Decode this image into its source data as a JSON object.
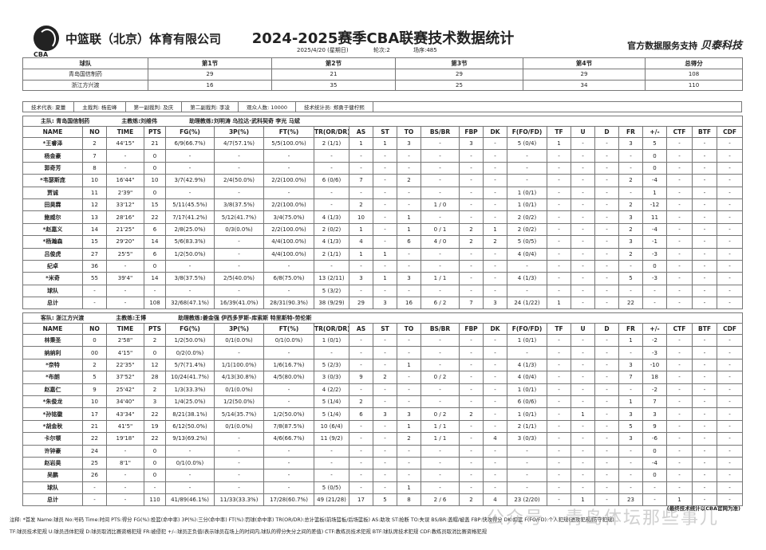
{
  "header": {
    "company": "中篮联（北京）体育有限公司",
    "logo_text": "CBA",
    "title": "2024-2025赛季CBA联赛技术数据统计",
    "date": "2025/4/20 (星期日)",
    "round": "轮次:2",
    "game_no": "场序:485",
    "sponsor_prefix": "官方数据服务支持",
    "sponsor_brand": "贝泰科技"
  },
  "quarters": {
    "headers": [
      "球队",
      "第1节",
      "第2节",
      "第3节",
      "第4节",
      "总得分"
    ],
    "rows": [
      [
        "青岛国信制药",
        "29",
        "21",
        "29",
        "29",
        "108"
      ],
      [
        "浙江方兴渡",
        "16",
        "35",
        "25",
        "34",
        "110"
      ]
    ]
  },
  "officials": [
    "技术代表: 夏蕾",
    "主裁判: 杨宏峰",
    "第一副裁判: 及庆",
    "第二副裁判: 李凌",
    "观众人数: 10000",
    "技术统计员: 郑勇于健柠熙"
  ],
  "columns": [
    "NAME",
    "NO",
    "TIME",
    "PTS",
    "FG(%)",
    "3P(%)",
    "FT(%)",
    "TR(OR/DR)",
    "AS",
    "ST",
    "TO",
    "BS/BR",
    "FBP",
    "DK",
    "F(FO/FD)",
    "TF",
    "U",
    "D",
    "FR",
    "+/-",
    "CTF",
    "BTF",
    "CDF"
  ],
  "home": {
    "team": "主队: 青岛国信制药",
    "coach": "主教练:刘维伟",
    "assistants": "助理教练:刘明涛 乌拉达·武科契奇 李光 马斌",
    "rows": [
      [
        "*王睿泽",
        "2",
        "44'15\"",
        "21",
        "6/9(66.7%)",
        "4/7(57.1%)",
        "5/5(100.0%)",
        "2 (1/1)",
        "1",
        "1",
        "3",
        "-",
        "3",
        "-",
        "5 (0/4)",
        "1",
        "-",
        "-",
        "3",
        "5",
        "-",
        "-",
        "-"
      ],
      [
        "杨金豪",
        "7",
        "-",
        "0",
        "-",
        "-",
        "-",
        "-",
        "-",
        "-",
        "-",
        "-",
        "-",
        "-",
        "-",
        "-",
        "-",
        "-",
        "-",
        "0",
        "-",
        "-",
        "-"
      ],
      [
        "郭奇芳",
        "8",
        "-",
        "0",
        "-",
        "-",
        "-",
        "-",
        "-",
        "-",
        "-",
        "-",
        "-",
        "-",
        "-",
        "-",
        "-",
        "-",
        "-",
        "0",
        "-",
        "-",
        "-"
      ],
      [
        "*韦瑟斯庞",
        "10",
        "16'44\"",
        "10",
        "3/7(42.9%)",
        "2/4(50.0%)",
        "2/2(100.0%)",
        "6 (0/6)",
        "7",
        "-",
        "2",
        "-",
        "-",
        "-",
        "-",
        "-",
        "-",
        "-",
        "2",
        "-4",
        "-",
        "-",
        "-"
      ],
      [
        "贾诚",
        "11",
        "2'39\"",
        "0",
        "-",
        "-",
        "-",
        "-",
        "-",
        "-",
        "-",
        "-",
        "-",
        "-",
        "1 (0/1)",
        "-",
        "-",
        "-",
        "-",
        "1",
        "-",
        "-",
        "-"
      ],
      [
        "田昊霖",
        "12",
        "33'12\"",
        "15",
        "5/11(45.5%)",
        "3/8(37.5%)",
        "2/2(100.0%)",
        "-",
        "2",
        "-",
        "-",
        "1 / 0",
        "-",
        "-",
        "1 (0/1)",
        "-",
        "-",
        "-",
        "2",
        "-12",
        "-",
        "-",
        "-"
      ],
      [
        "鲍威尔",
        "13",
        "28'16\"",
        "22",
        "7/17(41.2%)",
        "5/12(41.7%)",
        "3/4(75.0%)",
        "4 (1/3)",
        "10",
        "-",
        "1",
        "-",
        "-",
        "-",
        "2 (0/2)",
        "-",
        "-",
        "-",
        "3",
        "11",
        "-",
        "-",
        "-"
      ],
      [
        "*赵嘉义",
        "14",
        "21'25\"",
        "6",
        "2/8(25.0%)",
        "0/3(0.0%)",
        "2/2(100.0%)",
        "2 (0/2)",
        "1",
        "-",
        "1",
        "0 / 1",
        "2",
        "1",
        "2 (0/2)",
        "-",
        "-",
        "-",
        "2",
        "-4",
        "-",
        "-",
        "-"
      ],
      [
        "*杨瀚森",
        "15",
        "29'20\"",
        "14",
        "5/6(83.3%)",
        "-",
        "4/4(100.0%)",
        "4 (1/3)",
        "4",
        "-",
        "6",
        "4 / 0",
        "2",
        "2",
        "5 (0/5)",
        "-",
        "-",
        "-",
        "3",
        "-1",
        "-",
        "-",
        "-"
      ],
      [
        "吕俊虎",
        "27",
        "25'5\"",
        "6",
        "1/2(50.0%)",
        "-",
        "4/4(100.0%)",
        "2 (1/1)",
        "1",
        "1",
        "-",
        "-",
        "-",
        "-",
        "4 (0/4)",
        "-",
        "-",
        "-",
        "2",
        "-3",
        "-",
        "-",
        "-"
      ],
      [
        "纪卓",
        "36",
        "-",
        "0",
        "-",
        "-",
        "-",
        "-",
        "-",
        "-",
        "-",
        "-",
        "-",
        "-",
        "-",
        "-",
        "-",
        "-",
        "-",
        "0",
        "-",
        "-",
        "-"
      ],
      [
        "*米奇",
        "55",
        "39'4\"",
        "14",
        "3/8(37.5%)",
        "2/5(40.0%)",
        "6/8(75.0%)",
        "13 (2/11)",
        "3",
        "1",
        "3",
        "1 / 1",
        "-",
        "-",
        "4 (1/3)",
        "-",
        "-",
        "-",
        "5",
        "-3",
        "-",
        "-",
        "-"
      ],
      [
        "球队",
        "-",
        "-",
        "-",
        "-",
        "-",
        "-",
        "5 (3/2)",
        "-",
        "-",
        "-",
        "-",
        "-",
        "-",
        "-",
        "-",
        "-",
        "-",
        "-",
        "-",
        "-",
        "-",
        "-"
      ],
      [
        "总计",
        "-",
        "-",
        "108",
        "32/68(47.1%)",
        "16/39(41.0%)",
        "28/31(90.3%)",
        "38 (9/29)",
        "29",
        "3",
        "16",
        "6 / 2",
        "7",
        "3",
        "24 (1/22)",
        "1",
        "-",
        "-",
        "22",
        "-",
        "-",
        "-",
        "-"
      ]
    ]
  },
  "away": {
    "team": "客队: 浙江方兴渡",
    "coach": "主教练:王博",
    "assistants": "助理教练:姜金强 伊西多罗斯-库索斯 特里斯特-劳伦斯",
    "rows": [
      [
        "林秉圣",
        "0",
        "2'58\"",
        "2",
        "1/2(50.0%)",
        "0/1(0.0%)",
        "0/1(0.0%)",
        "1 (0/1)",
        "-",
        "-",
        "-",
        "-",
        "-",
        "-",
        "1 (0/1)",
        "-",
        "-",
        "-",
        "1",
        "-2",
        "-",
        "-",
        "-"
      ],
      [
        "纳纳利",
        "00",
        "4'15\"",
        "0",
        "0/2(0.0%)",
        "-",
        "-",
        "-",
        "-",
        "-",
        "-",
        "-",
        "-",
        "-",
        "-",
        "-",
        "-",
        "-",
        "-",
        "-3",
        "-",
        "-",
        "-"
      ],
      [
        "*奈特",
        "2",
        "22'35\"",
        "12",
        "5/7(71.4%)",
        "1/1(100.0%)",
        "1/6(16.7%)",
        "5 (2/3)",
        "-",
        "-",
        "1",
        "-",
        "-",
        "-",
        "4 (1/3)",
        "-",
        "-",
        "-",
        "3",
        "-10",
        "-",
        "-",
        "-"
      ],
      [
        "*布朗",
        "5",
        "37'52\"",
        "28",
        "10/24(41.7%)",
        "4/13(30.8%)",
        "4/5(80.0%)",
        "3 (0/3)",
        "9",
        "2",
        "-",
        "0 / 2",
        "-",
        "-",
        "4 (0/4)",
        "-",
        "-",
        "-",
        "7",
        "18",
        "-",
        "-",
        "-"
      ],
      [
        "赵嘉仁",
        "9",
        "25'42\"",
        "2",
        "1/3(33.3%)",
        "0/1(0.0%)",
        "-",
        "4 (2/2)",
        "-",
        "-",
        "-",
        "-",
        "-",
        "-",
        "1 (0/1)",
        "-",
        "-",
        "-",
        "-",
        "-2",
        "-",
        "-",
        "-"
      ],
      [
        "*朱俊龙",
        "10",
        "34'40\"",
        "3",
        "1/4(25.0%)",
        "1/2(50.0%)",
        "-",
        "5 (1/4)",
        "2",
        "-",
        "-",
        "-",
        "-",
        "-",
        "6 (0/6)",
        "-",
        "-",
        "-",
        "1",
        "7",
        "-",
        "-",
        "-"
      ],
      [
        "*孙铭徽",
        "17",
        "43'34\"",
        "22",
        "8/21(38.1%)",
        "5/14(35.7%)",
        "1/2(50.0%)",
        "5 (1/4)",
        "6",
        "3",
        "3",
        "0 / 2",
        "2",
        "-",
        "1 (0/1)",
        "-",
        "1",
        "-",
        "3",
        "3",
        "-",
        "-",
        "-"
      ],
      [
        "*胡金秋",
        "21",
        "41'5\"",
        "19",
        "6/12(50.0%)",
        "0/1(0.0%)",
        "7/8(87.5%)",
        "10 (6/4)",
        "-",
        "-",
        "1",
        "1 / 1",
        "-",
        "-",
        "2 (1/1)",
        "-",
        "-",
        "-",
        "5",
        "9",
        "-",
        "-",
        "-"
      ],
      [
        "卡尔顿",
        "22",
        "19'18\"",
        "22",
        "9/13(69.2%)",
        "-",
        "4/6(66.7%)",
        "11 (9/2)",
        "-",
        "-",
        "2",
        "1 / 1",
        "-",
        "4",
        "3 (0/3)",
        "-",
        "-",
        "-",
        "3",
        "-6",
        "-",
        "-",
        "-"
      ],
      [
        "许钟豪",
        "24",
        "-",
        "0",
        "-",
        "-",
        "-",
        "-",
        "-",
        "-",
        "-",
        "-",
        "-",
        "-",
        "-",
        "-",
        "-",
        "-",
        "-",
        "0",
        "-",
        "-",
        "-"
      ],
      [
        "赵岩昊",
        "25",
        "8'1\"",
        "0",
        "0/1(0.0%)",
        "-",
        "-",
        "-",
        "-",
        "-",
        "-",
        "-",
        "-",
        "-",
        "-",
        "-",
        "-",
        "-",
        "-",
        "-4",
        "-",
        "-",
        "-"
      ],
      [
        "吴鹏",
        "26",
        "-",
        "0",
        "-",
        "-",
        "-",
        "-",
        "-",
        "-",
        "-",
        "-",
        "-",
        "-",
        "-",
        "-",
        "-",
        "-",
        "-",
        "0",
        "-",
        "-",
        "-"
      ],
      [
        "球队",
        "-",
        "-",
        "-",
        "-",
        "-",
        "-",
        "5 (0/5)",
        "-",
        "-",
        "1",
        "-",
        "-",
        "-",
        "-",
        "-",
        "-",
        "-",
        "-",
        "-",
        "-",
        "-",
        "-"
      ],
      [
        "总计",
        "-",
        "-",
        "110",
        "41/89(46.1%)",
        "11/33(33.3%)",
        "17/28(60.7%)",
        "49 (21/28)",
        "17",
        "5",
        "8",
        "2 / 6",
        "2",
        "4",
        "23 (2/20)",
        "-",
        "1",
        "-",
        "23",
        "-",
        "1",
        "-",
        "-"
      ]
    ]
  },
  "footer": {
    "note": "(最终技术统计以CBA官网为准)",
    "line1": "注释: *首发 Name:球员 No:号码 Time:时间 PTS:得分 FG(%):投篮(命中率) 3P(%):三分(命中率) FT(%):罚球(命中率) TR(OR/DR):总计篮板(前场篮板/后场篮板) AS:助攻 ST:抢断 TO:失误 BS/BR:盖帽/被盖 FBP:快攻得分 DK:扣篮 F(FO/FD):个人犯规(进攻犯规/防守犯规)",
    "line2": "TF:球员技术犯规 U:球员违体犯规 D:球员取消比赛资格犯规 FR:被侵犯 +/-:球员正负值(表示球员在场上的时间内,球队的得分失分之间的差值) CTF:教练员技术犯规 BTF:球队席技术犯规 CDF:教练员取消比赛资格犯规",
    "watermark": "公众号 · 青岛体坛那些事儿"
  }
}
